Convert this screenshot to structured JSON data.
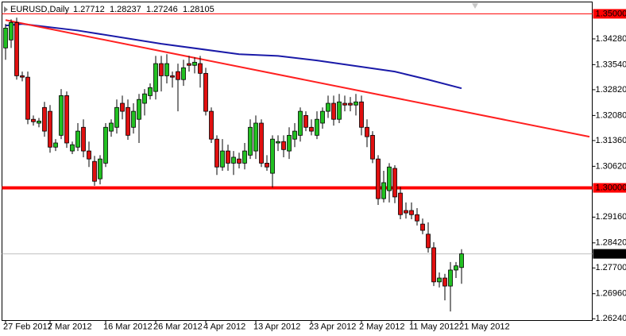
{
  "chart_data": {
    "type": "candlestick",
    "symbol": "EURUSD,Daily",
    "up_color": "#22c022",
    "down_color": "#e01010",
    "categories": [
      "27 Feb 2012",
      null,
      null,
      null,
      null,
      null,
      null,
      null,
      "7 Mar 2012",
      null,
      null,
      null,
      null,
      null,
      null,
      null,
      null,
      null,
      "16 Mar 2012",
      null,
      null,
      null,
      null,
      null,
      null,
      null,
      null,
      "26 Mar 2012",
      null,
      null,
      null,
      null,
      null,
      null,
      null,
      null,
      "4 Apr 2012",
      null,
      null,
      null,
      null,
      null,
      null,
      null,
      null,
      "13 Apr 2012",
      null,
      null,
      null,
      null,
      null,
      null,
      null,
      null,
      null,
      "23 Apr 2012",
      null,
      null,
      null,
      null,
      null,
      null,
      null,
      null,
      "2 May 2012",
      null,
      null,
      null,
      null,
      null,
      null,
      null,
      null,
      "11 May 2012",
      null,
      null,
      null,
      null,
      null,
      null,
      null,
      null,
      "21 May 2012"
    ],
    "open": [
      1.3402,
      1.3425,
      1.3475,
      1.3322,
      1.3318,
      1.3197,
      1.3186,
      1.3231,
      1.322,
      1.3117,
      1.3151,
      1.3265,
      1.3106,
      1.3117,
      1.3174,
      1.3106,
      1.3076,
      1.3026,
      1.3071,
      1.3163,
      1.3174,
      1.3243,
      1.3231,
      1.3174,
      1.3197,
      1.3243,
      1.3265,
      1.3277,
      1.3357,
      1.3322,
      1.3322,
      1.3334,
      1.3311,
      1.3357,
      1.3352,
      1.3357,
      1.3329,
      1.322,
      1.314,
      1.306,
      1.3106,
      1.3071,
      1.3083,
      1.3071,
      1.3094,
      1.3106,
      1.3186,
      1.3071,
      1.3042,
      1.3129,
      1.3133,
      1.3106,
      1.314,
      1.3151,
      1.3208,
      1.3174,
      1.3151,
      1.3186,
      1.322,
      1.3243,
      1.3197,
      1.3243,
      1.3243,
      1.3238,
      1.3247,
      1.3174,
      1.3151,
      1.3083,
      1.2969,
      1.2992,
      1.3056,
      1.2985,
      1.2935,
      1.2935,
      1.2923,
      1.2896,
      1.2867,
      1.2828,
      1.273,
      1.2741,
      1.2718,
      1.2764,
      1.27712
    ],
    "high": [
      1.3471,
      1.3484,
      1.3489,
      1.3334,
      1.3334,
      1.3208,
      1.3201,
      1.3247,
      1.3238,
      1.314,
      1.3284,
      1.3277,
      1.3133,
      1.3186,
      1.3197,
      1.3133,
      1.3092,
      1.3094,
      1.3186,
      1.3197,
      1.3254,
      1.3265,
      1.3254,
      1.3243,
      1.327,
      1.3284,
      1.33,
      1.3379,
      1.3379,
      1.3384,
      1.3334,
      1.3357,
      1.3368,
      1.3379,
      1.3375,
      1.3379,
      1.3345,
      1.3231,
      1.3151,
      1.314,
      1.3124,
      1.3106,
      1.3101,
      1.3129,
      1.3197,
      1.3208,
      1.3197,
      1.3094,
      1.3151,
      1.3151,
      1.3151,
      1.3174,
      1.3186,
      1.3231,
      1.322,
      1.3197,
      1.322,
      1.3231,
      1.3265,
      1.3265,
      1.327,
      1.3265,
      1.3261,
      1.327,
      1.3265,
      1.3197,
      1.3163,
      1.3094,
      1.3049,
      1.3071,
      1.3065,
      1.3003,
      1.2958,
      1.2958,
      1.2942,
      1.2912,
      1.2901,
      1.2844,
      1.2757,
      1.2753,
      1.2787,
      1.2787,
      1.28237
    ],
    "low": [
      1.3368,
      1.3402,
      1.3311,
      1.3306,
      1.3183,
      1.3179,
      1.3174,
      1.3147,
      1.3101,
      1.3106,
      1.314,
      1.3115,
      1.3097,
      1.3106,
      1.3088,
      1.306,
      1.3006,
      1.301,
      1.306,
      1.3147,
      1.3156,
      1.3197,
      1.3138,
      1.3156,
      1.3129,
      1.3208,
      1.3254,
      1.3254,
      1.3277,
      1.33,
      1.3288,
      1.322,
      1.3293,
      1.3334,
      1.3329,
      1.3288,
      1.3208,
      1.3129,
      1.3037,
      1.3049,
      1.3049,
      1.3037,
      1.3056,
      1.3053,
      1.3083,
      1.3083,
      1.306,
      1.3049,
      1.3001,
      1.3106,
      1.3088,
      1.3083,
      1.3117,
      1.3133,
      1.3163,
      1.3151,
      1.314,
      1.317,
      1.3201,
      1.3179,
      1.3186,
      1.322,
      1.322,
      1.3208,
      1.3151,
      1.3117,
      1.3071,
      1.2951,
      1.2958,
      1.2958,
      1.2956,
      1.291,
      1.2912,
      1.291,
      1.2892,
      1.2867,
      1.2814,
      1.2718,
      1.2714,
      1.2677,
      1.2645,
      1.2741,
      1.27246
    ],
    "close": [
      1.3459,
      1.3475,
      1.3322,
      1.3318,
      1.3197,
      1.319,
      1.3192,
      1.3163,
      1.3117,
      1.3129,
      1.3265,
      1.3129,
      1.3124,
      1.3163,
      1.3106,
      1.3083,
      1.3019,
      1.3083,
      1.3174,
      1.3186,
      1.3231,
      1.322,
      1.3151,
      1.322,
      1.3254,
      1.327,
      1.3288,
      1.3357,
      1.3322,
      1.3357,
      1.3318,
      1.3311,
      1.3345,
      1.3352,
      1.3361,
      1.3329,
      1.322,
      1.314,
      1.306,
      1.3106,
      1.3071,
      1.3088,
      1.3071,
      1.3106,
      1.3174,
      1.3186,
      1.3071,
      1.306,
      1.314,
      1.3133,
      1.311,
      1.3151,
      1.3163,
      1.322,
      1.3174,
      1.3163,
      1.3197,
      1.322,
      1.3243,
      1.3197,
      1.3247,
      1.3238,
      1.3238,
      1.3247,
      1.3174,
      1.3147,
      1.3083,
      1.2969,
      1.3015,
      1.306,
      1.2974,
      1.2923,
      1.2928,
      1.2923,
      1.2905,
      1.2878,
      1.2828,
      1.273,
      1.2741,
      1.2718,
      1.2764,
      1.2776,
      1.28105
    ],
    "moving_average": {
      "color": "#1a1aa8",
      "x": [
        0,
        3,
        13,
        28,
        42,
        49,
        56,
        63,
        70,
        76,
        82
      ],
      "values": [
        1.3466,
        1.3471,
        1.3452,
        1.3414,
        1.3384,
        1.3379,
        1.3366,
        1.335,
        1.3334,
        1.3311,
        1.3286
      ]
    },
    "trendline": {
      "color": "#ff2020",
      "x": [
        0,
        105
      ],
      "values": [
        1.3482,
        1.3147
      ]
    },
    "hlines": [
      {
        "value": 1.35,
        "label": "1.35000",
        "color": "#ff0000"
      },
      {
        "value": 1.3,
        "label": "1.30000",
        "color": "#ff0000"
      }
    ],
    "price_line_color": "#c0c0c0",
    "ylim": [
      1.2619,
      1.3534
    ],
    "yticks": [
      {
        "value": 1.3428,
        "label": "1.34280"
      },
      {
        "value": 1.3354,
        "label": "1.33540"
      },
      {
        "value": 1.3282,
        "label": "1.32820"
      },
      {
        "value": 1.3208,
        "label": "1.32080"
      },
      {
        "value": 1.3136,
        "label": "1.31360"
      },
      {
        "value": 1.3062,
        "label": "1.30620"
      },
      {
        "value": 1.2916,
        "label": "1.29160"
      },
      {
        "value": 1.2842,
        "label": "1.28420"
      },
      {
        "value": 1.277,
        "label": "1.27700"
      },
      {
        "value": 1.2696,
        "label": "1.26960"
      },
      {
        "value": 1.2624,
        "label": "1.26240"
      }
    ]
  }
}
